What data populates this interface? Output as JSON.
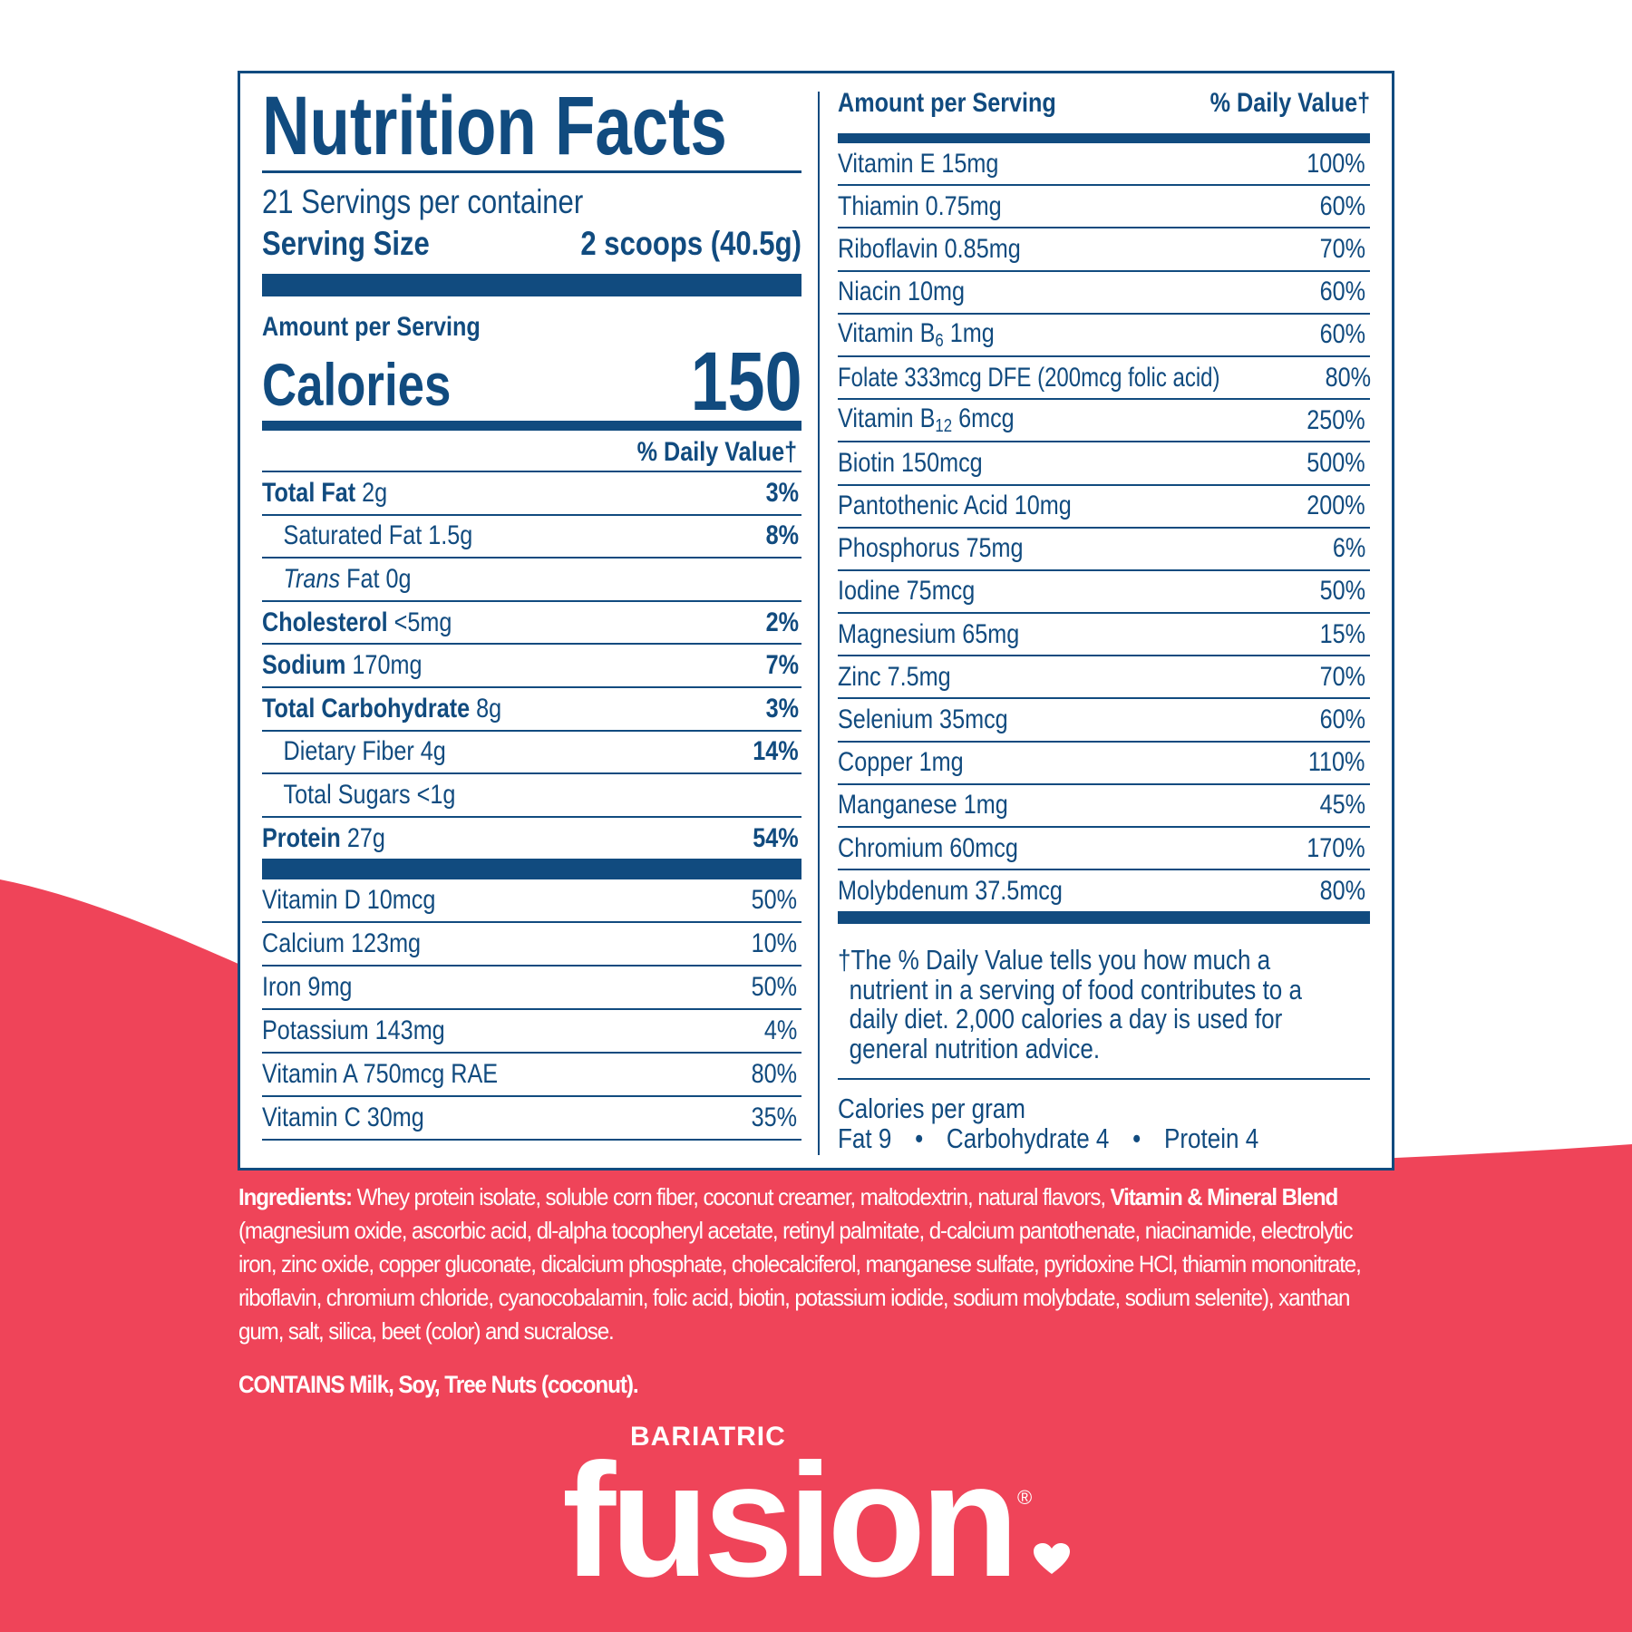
{
  "colors": {
    "navy": "#114b7f",
    "brand_red": "#ef4459",
    "white": "#ffffff"
  },
  "label": {
    "title": "Nutrition Facts",
    "servings": "21 Servings per container",
    "serving_size_label": "Serving Size",
    "serving_size_value": "2 scoops (40.5g)",
    "amount_per_serving": "Amount per Serving",
    "calories_label": "Calories",
    "calories_value": "150",
    "dv_header": "% Daily Value†",
    "macros": [
      {
        "name": "Total Fat",
        "amount": "2g",
        "dv": "3%",
        "bold": true
      },
      {
        "name": "Saturated Fat 1.5g",
        "amount": "",
        "dv": "8%",
        "indent": true,
        "bolddv": true
      },
      {
        "italic": "Trans",
        "name": " Fat 0g",
        "amount": "",
        "dv": "",
        "indent": true
      },
      {
        "name": "Cholesterol",
        "amount": "<5mg",
        "dv": "2%",
        "bold": true
      },
      {
        "name": "Sodium",
        "amount": "170mg",
        "dv": "7%",
        "bold": true
      },
      {
        "name": "Total Carbohydrate",
        "amount": "8g",
        "dv": "3%",
        "bold": true
      },
      {
        "name": "Dietary Fiber 4g",
        "amount": "",
        "dv": "14%",
        "indent": true,
        "bolddv": true
      },
      {
        "name": "Total Sugars <1g",
        "amount": "",
        "dv": "",
        "indent": true
      },
      {
        "name": "Protein",
        "amount": "27g",
        "dv": "54%",
        "bold": true
      }
    ],
    "vitamins_left": [
      {
        "label": "Vitamin D 10mcg",
        "dv": "50%"
      },
      {
        "label": "Calcium 123mg",
        "dv": "10%"
      },
      {
        "label": "Iron 9mg",
        "dv": "50%"
      },
      {
        "label": "Potassium 143mg",
        "dv": "4%"
      },
      {
        "label": "Vitamin A 750mcg RAE",
        "dv": "80%"
      },
      {
        "label": "Vitamin C 30mg",
        "dv": "35%"
      }
    ],
    "right_header_left": "Amount per Serving",
    "right_header_right": "% Daily Value†",
    "vitamins_right": [
      {
        "label": "Vitamin E 15mg",
        "dv": "100%"
      },
      {
        "label": "Thiamin 0.75mg",
        "dv": "60%"
      },
      {
        "label": "Riboflavin 0.85mg",
        "dv": "70%"
      },
      {
        "label": "Niacin 10mg",
        "dv": "60%"
      },
      {
        "label": "Vitamin B",
        "sub": "6",
        "after": " 1mg",
        "dv": "60%"
      },
      {
        "label": "Folate 333mcg DFE (200mcg folic acid)",
        "dv": "80%"
      },
      {
        "label": "Vitamin B",
        "sub": "12",
        "after": " 6mcg",
        "dv": "250%"
      },
      {
        "label": "Biotin 150mcg",
        "dv": "500%"
      },
      {
        "label": "Pantothenic Acid 10mg",
        "dv": "200%"
      },
      {
        "label": "Phosphorus 75mg",
        "dv": "6%"
      },
      {
        "label": "Iodine 75mcg",
        "dv": "50%"
      },
      {
        "label": "Magnesium 65mg",
        "dv": "15%"
      },
      {
        "label": "Zinc 7.5mg",
        "dv": "70%"
      },
      {
        "label": "Selenium 35mcg",
        "dv": "60%"
      },
      {
        "label": "Copper 1mg",
        "dv": "110%"
      },
      {
        "label": "Manganese 1mg",
        "dv": "45%"
      },
      {
        "label": "Chromium 60mcg",
        "dv": "170%"
      },
      {
        "label": "Molybdenum 37.5mcg",
        "dv": "80%"
      }
    ],
    "footnote": [
      "†The % Daily Value tells you how much a",
      "nutrient in a serving of food contributes to a",
      "daily diet. 2,000 calories a day is used for",
      "general nutrition advice."
    ],
    "cal_per_gram_title": "Calories per gram",
    "cal_per_gram": [
      "Fat 9",
      "Carbohydrate 4",
      "Protein 4"
    ]
  },
  "ingredients": {
    "heading": "Ingredients:",
    "text1": " Whey protein isolate, soluble corn fiber, coconut creamer, maltodextrin, natural flavors, ",
    "blend": "Vitamin & Mineral Blend",
    "text2": " (magnesium oxide, ascorbic acid, dl-alpha tocopheryl acetate, retinyl palmitate, d-calcium pantothenate, niacinamide, electrolytic iron, zinc oxide, copper gluconate, dicalcium phosphate, cholecalciferol, manganese sulfate, pyridoxine HCl, thiamin mononitrate, riboflavin, chromium chloride, cyanocobalamin, folic acid, biotin, potassium iodide, sodium molybdate, sodium selenite), xanthan gum, salt, silica, beet (color) and sucralose.",
    "contains": "CONTAINS Milk, Soy, Tree Nuts (coconut)."
  },
  "logo": {
    "top": "BARIATRIC",
    "main": "fusion",
    "reg": "®"
  }
}
